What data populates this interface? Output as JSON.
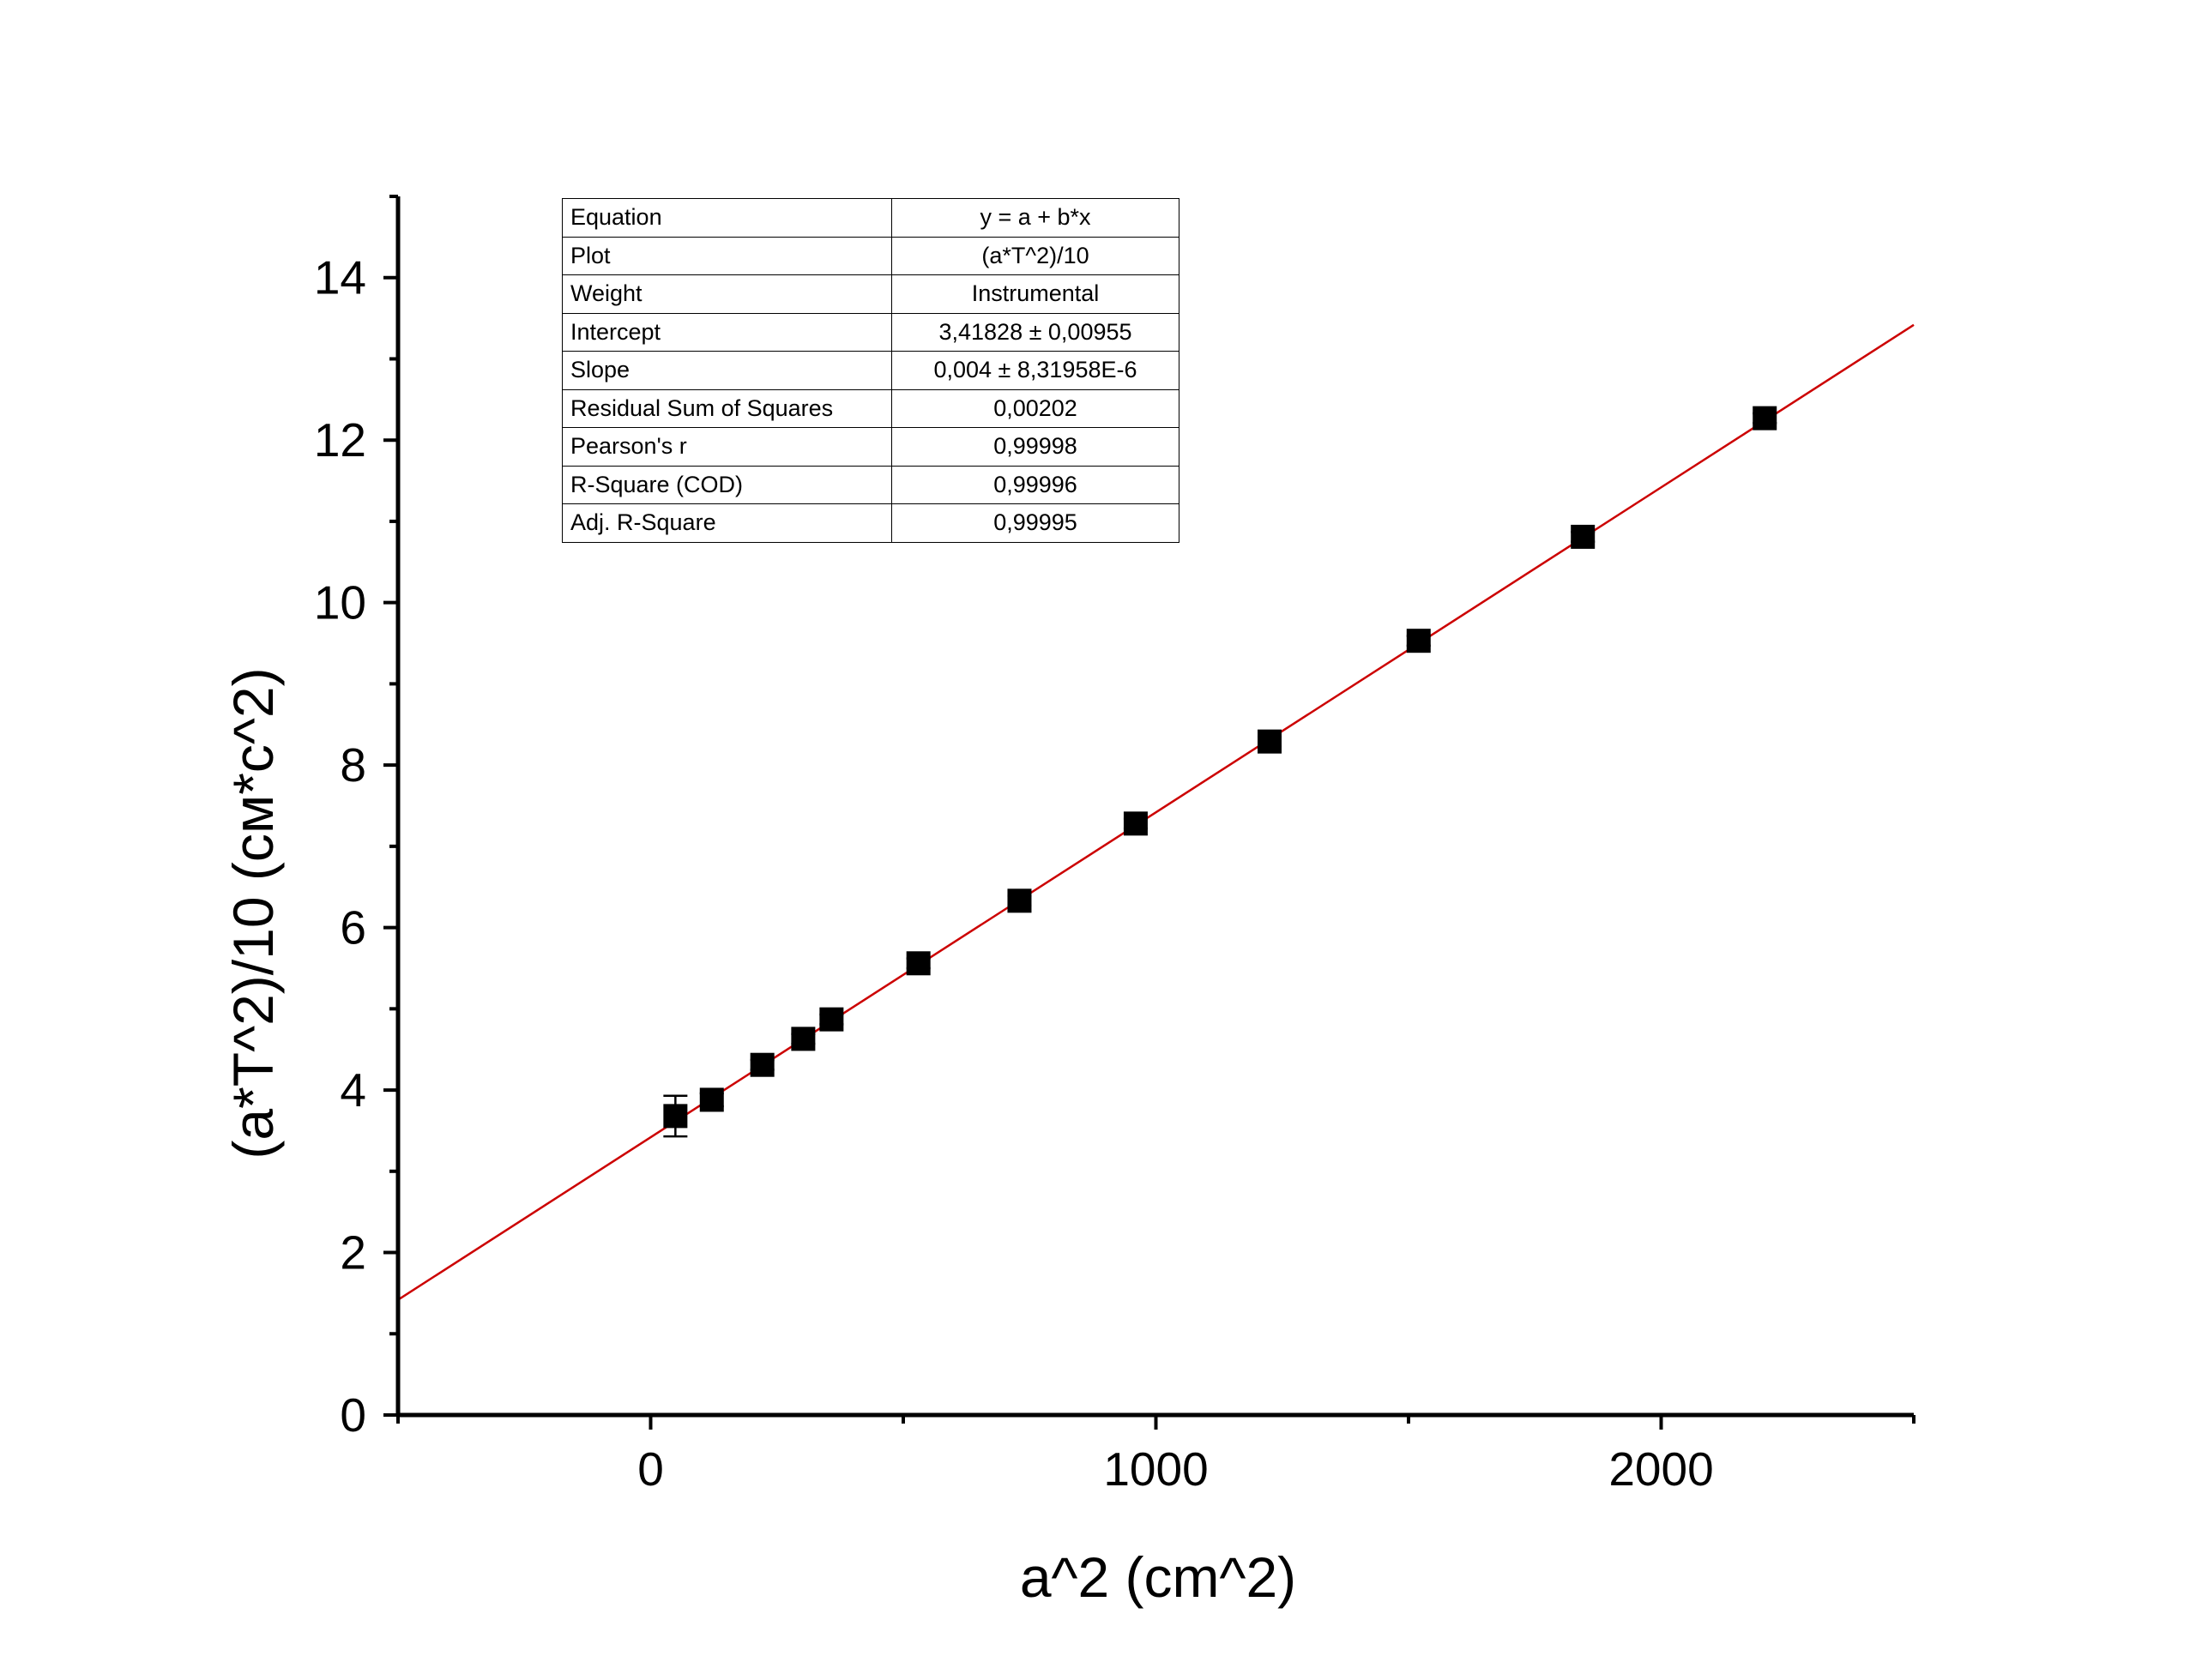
{
  "chart_data": {
    "type": "scatter",
    "xlabel": "a^2 (cm^2)",
    "ylabel": "(a*T^2)/10 (см*c^2)",
    "xlim": [
      -500,
      2500
    ],
    "ylim": [
      0,
      15
    ],
    "x_ticks": [
      0,
      1000,
      2000
    ],
    "y_ticks": [
      0,
      2,
      4,
      6,
      8,
      10,
      12,
      14
    ],
    "grid": false,
    "series": [
      {
        "marker": "square",
        "color": "#000000",
        "x": [
          49,
          121,
          221,
          302,
          358,
          530,
          730,
          960,
          1225,
          1520,
          1845,
          2205
        ],
        "y": [
          3.68,
          3.88,
          4.31,
          4.63,
          4.87,
          5.56,
          6.33,
          7.28,
          8.29,
          9.53,
          10.81,
          12.27
        ],
        "y_error": [
          0.25,
          0.08,
          0.06,
          0.06,
          0.06,
          0.06,
          0.06,
          0.06,
          0.06,
          0.06,
          0.06,
          0.06
        ]
      }
    ],
    "fit_line": {
      "color": "#cc0000",
      "intercept": 3.41828,
      "slope": 0.004,
      "x_range": [
        -500,
        2500
      ]
    }
  },
  "fit_table": [
    {
      "key": "Equation",
      "value": "y = a + b*x"
    },
    {
      "key": "Plot",
      "value": "(a*T^2)/10"
    },
    {
      "key": "Weight",
      "value": "Instrumental"
    },
    {
      "key": "Intercept",
      "value": "3,41828 ± 0,00955"
    },
    {
      "key": "Slope",
      "value": "0,004 ± 8,31958E-6"
    },
    {
      "key": "Residual Sum of Squares",
      "value": "0,00202"
    },
    {
      "key": "Pearson's r",
      "value": "0,99998"
    },
    {
      "key": "R-Square (COD)",
      "value": "0,99996"
    },
    {
      "key": "Adj. R-Square",
      "value": "0,99995"
    }
  ]
}
